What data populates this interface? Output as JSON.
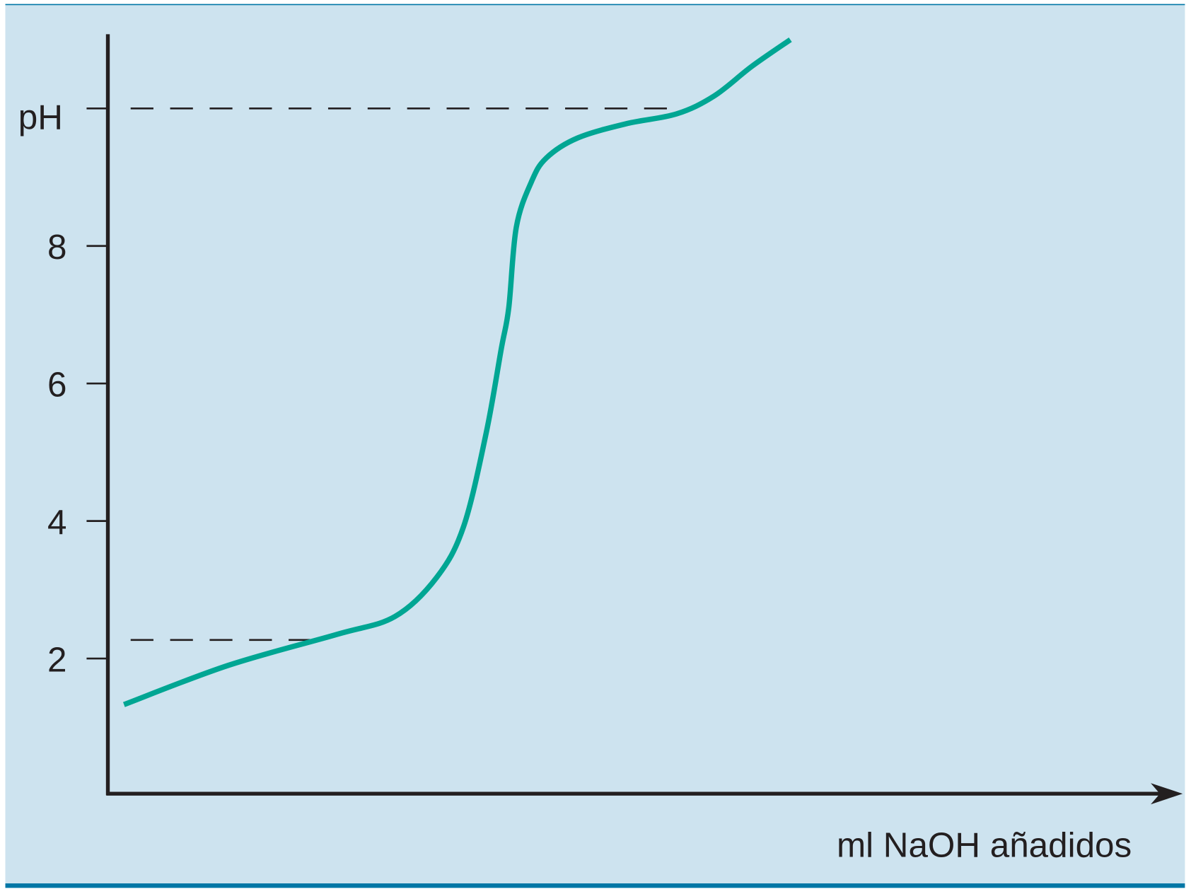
{
  "chart_data": {
    "type": "line",
    "title": "",
    "xlabel": "ml NaOH añadidos",
    "ylabel": "pH",
    "xlim": [
      0,
      100
    ],
    "ylim": [
      0,
      11.08
    ],
    "x_ticks": [],
    "y_ticks": [
      {
        "value": 2,
        "label": "2"
      },
      {
        "value": 4,
        "label": "4"
      },
      {
        "value": 6,
        "label": "6"
      },
      {
        "value": 8,
        "label": "8"
      },
      {
        "value": 10,
        "label": ""
      }
    ],
    "grid": false,
    "legend": "none",
    "series": [
      {
        "color": "#00a693",
        "x": [
          1.5,
          11.2,
          21.3,
          26.7,
          30.6,
          33.1,
          35.2,
          36.6,
          37.3,
          38.0,
          39.4,
          40.8,
          43.7,
          48.3,
          52.9,
          56.4,
          59.9,
          63.5
        ],
        "y": [
          1.33,
          1.9,
          2.35,
          2.61,
          3.18,
          3.92,
          5.28,
          6.5,
          7.1,
          8.27,
          8.93,
          9.28,
          9.57,
          9.78,
          9.92,
          10.18,
          10.61,
          11.0
        ]
      }
    ],
    "reference_lines": [
      {
        "style": "dashed",
        "y": 2.27,
        "x_from": 0,
        "x_to": 18.9
      },
      {
        "style": "dashed",
        "y": 10,
        "x_from": 0,
        "x_to": 52.5
      }
    ],
    "colors": {
      "background": "#cde3ef",
      "frame": "#0077a6",
      "axis": "#231f20"
    }
  }
}
